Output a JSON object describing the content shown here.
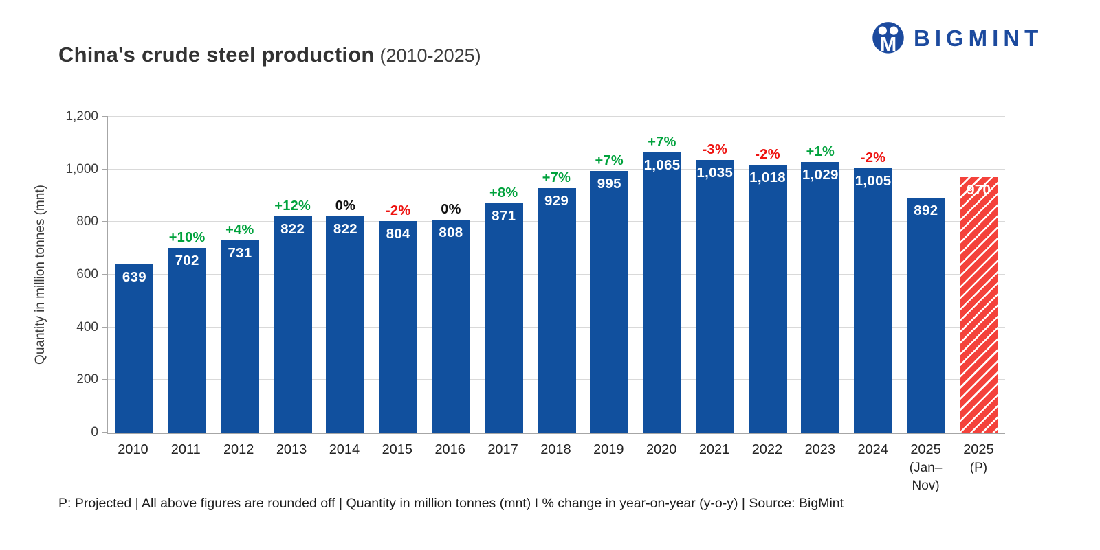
{
  "header": {
    "title": "China's crude steel production",
    "subtitle": "(2010-2025)"
  },
  "logo": {
    "text": "BIGMINT",
    "color": "#1c4a9e",
    "icon": "bigmint-people-icon"
  },
  "chart_data": {
    "type": "bar",
    "title": "China's crude steel production (2010-2025)",
    "xlabel": "",
    "ylabel": "Quantity in million tonnes (mnt)",
    "ylim": [
      0,
      1200
    ],
    "ytick_step": 200,
    "yticks": [
      "0",
      "200",
      "400",
      "600",
      "800",
      "1,000",
      "1,200"
    ],
    "grid": "horizontal",
    "unit": "mnt",
    "colors": {
      "bar_blue": "#11509e",
      "bar_red": "#f4423b",
      "pct_up": "#00a23c",
      "pct_down": "#ee1411",
      "pct_flat": "#111111"
    },
    "points": [
      {
        "year": "2010",
        "sub": "",
        "value": 639,
        "label": "639",
        "pct": "",
        "trend": "none",
        "style": "blue"
      },
      {
        "year": "2011",
        "sub": "",
        "value": 702,
        "label": "702",
        "pct": "+10%",
        "trend": "up",
        "style": "blue"
      },
      {
        "year": "2012",
        "sub": "",
        "value": 731,
        "label": "731",
        "pct": "+4%",
        "trend": "up",
        "style": "blue"
      },
      {
        "year": "2013",
        "sub": "",
        "value": 822,
        "label": "822",
        "pct": "+12%",
        "trend": "up",
        "style": "blue"
      },
      {
        "year": "2014",
        "sub": "",
        "value": 822,
        "label": "822",
        "pct": "0%",
        "trend": "flat",
        "style": "blue"
      },
      {
        "year": "2015",
        "sub": "",
        "value": 804,
        "label": "804",
        "pct": "-2%",
        "trend": "down",
        "style": "blue"
      },
      {
        "year": "2016",
        "sub": "",
        "value": 808,
        "label": "808",
        "pct": "0%",
        "trend": "flat",
        "style": "blue"
      },
      {
        "year": "2017",
        "sub": "",
        "value": 871,
        "label": "871",
        "pct": "+8%",
        "trend": "up",
        "style": "blue"
      },
      {
        "year": "2018",
        "sub": "",
        "value": 929,
        "label": "929",
        "pct": "+7%",
        "trend": "up",
        "style": "blue"
      },
      {
        "year": "2019",
        "sub": "",
        "value": 995,
        "label": "995",
        "pct": "+7%",
        "trend": "up",
        "style": "blue"
      },
      {
        "year": "2020",
        "sub": "",
        "value": 1065,
        "label": "1,065",
        "pct": "+7%",
        "trend": "up",
        "style": "blue"
      },
      {
        "year": "2021",
        "sub": "",
        "value": 1035,
        "label": "1,035",
        "pct": "-3%",
        "trend": "down",
        "style": "blue"
      },
      {
        "year": "2022",
        "sub": "",
        "value": 1018,
        "label": "1,018",
        "pct": "-2%",
        "trend": "down",
        "style": "blue"
      },
      {
        "year": "2023",
        "sub": "",
        "value": 1029,
        "label": "1,029",
        "pct": "+1%",
        "trend": "up",
        "style": "blue"
      },
      {
        "year": "2024",
        "sub": "",
        "value": 1005,
        "label": "1,005",
        "pct": "-2%",
        "trend": "down",
        "style": "blue"
      },
      {
        "year": "2025",
        "sub": "(Jan–Nov)",
        "value": 892,
        "label": "892",
        "pct": "",
        "trend": "none",
        "style": "blue"
      },
      {
        "year": "2025",
        "sub": "(P)",
        "value": 970,
        "label": "970",
        "pct": "",
        "trend": "none",
        "style": "red-hatched"
      }
    ]
  },
  "footer": {
    "note": "P: Projected | All above figures are rounded off | Quantity in million tonnes (mnt)  I  % change in year-on-year (y-o-y) | Source: BigMint"
  }
}
